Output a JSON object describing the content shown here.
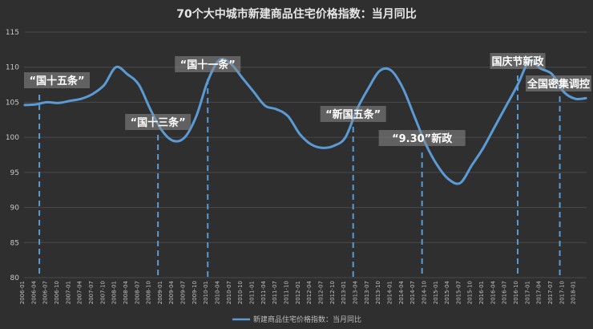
{
  "chart_data": {
    "type": "line",
    "title": "70个大中城市新建商品住宅价格指数：当月同比",
    "ylim": [
      80,
      115
    ],
    "yticks": [
      80,
      85,
      90,
      95,
      100,
      105,
      110,
      115
    ],
    "grid": true,
    "legend_position": "bottom",
    "line_color": "#5b9bd5",
    "x_start": "2006-01",
    "x_end": "2018-04",
    "x_tick_labels": [
      "2006-01",
      "2006-04",
      "2006-07",
      "2006-10",
      "2007-01",
      "2007-04",
      "2007-07",
      "2007-10",
      "2008-01",
      "2008-04",
      "2008-07",
      "2008-10",
      "2009-01",
      "2009-04",
      "2009-07",
      "2009-10",
      "2010-01",
      "2010-04",
      "2010-07",
      "2010-10",
      "2011-01",
      "2011-04",
      "2011-07",
      "2011-10",
      "2012-01",
      "2012-04",
      "2012-07",
      "2012-10",
      "2013-01",
      "2013-04",
      "2013-07",
      "2013-10",
      "2014-01",
      "2014-04",
      "2014-07",
      "2014-10",
      "2015-01",
      "2015-04",
      "2015-07",
      "2015-10",
      "2016-01",
      "2016-04",
      "2016-07",
      "2016-10",
      "2017-01",
      "2017-04",
      "2017-07",
      "2017-10",
      "2018-01"
    ],
    "series": [
      {
        "name": "新建商品住宅价格指数：当月同比",
        "points": [
          [
            "2006-01",
            104.6
          ],
          [
            "2006-04",
            104.7
          ],
          [
            "2006-07",
            105.0
          ],
          [
            "2006-10",
            104.9
          ],
          [
            "2007-01",
            105.2
          ],
          [
            "2007-04",
            105.5
          ],
          [
            "2007-07",
            106.2
          ],
          [
            "2007-10",
            107.5
          ],
          [
            "2008-01",
            110.0
          ],
          [
            "2008-04",
            109.0
          ],
          [
            "2008-07",
            107.5
          ],
          [
            "2008-10",
            104.0
          ],
          [
            "2009-01",
            101.0
          ],
          [
            "2009-04",
            99.5
          ],
          [
            "2009-07",
            100.0
          ],
          [
            "2009-10",
            103.0
          ],
          [
            "2010-01",
            108.0
          ],
          [
            "2010-04",
            111.0
          ],
          [
            "2010-07",
            110.5
          ],
          [
            "2010-10",
            108.5
          ],
          [
            "2011-01",
            106.5
          ],
          [
            "2011-04",
            104.5
          ],
          [
            "2011-07",
            104.0
          ],
          [
            "2011-10",
            103.0
          ],
          [
            "2012-01",
            100.5
          ],
          [
            "2012-04",
            99.0
          ],
          [
            "2012-07",
            98.5
          ],
          [
            "2012-10",
            98.8
          ],
          [
            "2013-01",
            100.0
          ],
          [
            "2013-04",
            104.0
          ],
          [
            "2013-07",
            107.0
          ],
          [
            "2013-10",
            109.5
          ],
          [
            "2014-01",
            109.5
          ],
          [
            "2014-04",
            107.0
          ],
          [
            "2014-07",
            103.0
          ],
          [
            "2014-10",
            99.0
          ],
          [
            "2015-01",
            96.0
          ],
          [
            "2015-04",
            94.0
          ],
          [
            "2015-07",
            93.5
          ],
          [
            "2015-10",
            96.0
          ],
          [
            "2016-01",
            98.5
          ],
          [
            "2016-04",
            101.5
          ],
          [
            "2016-07",
            104.5
          ],
          [
            "2016-10",
            107.5
          ],
          [
            "2017-01",
            110.8
          ],
          [
            "2017-04",
            109.8
          ],
          [
            "2017-07",
            109.0
          ],
          [
            "2017-10",
            106.5
          ],
          [
            "2018-01",
            105.5
          ],
          [
            "2018-04",
            105.6
          ]
        ]
      }
    ],
    "annotations": [
      {
        "label": "“国十五条”",
        "x": "2006-05"
      },
      {
        "label": "“国十三条”",
        "x": "2008-12"
      },
      {
        "label": "“国十一条”",
        "x": "2010-01"
      },
      {
        "label": "“新国五条”",
        "x": "2013-03"
      },
      {
        "label": "“9.30”新政",
        "x": "2014-09"
      },
      {
        "label": "国庆节新政",
        "x": "2016-10"
      },
      {
        "label": "全国密集调控",
        "x": "2017-09"
      }
    ]
  }
}
